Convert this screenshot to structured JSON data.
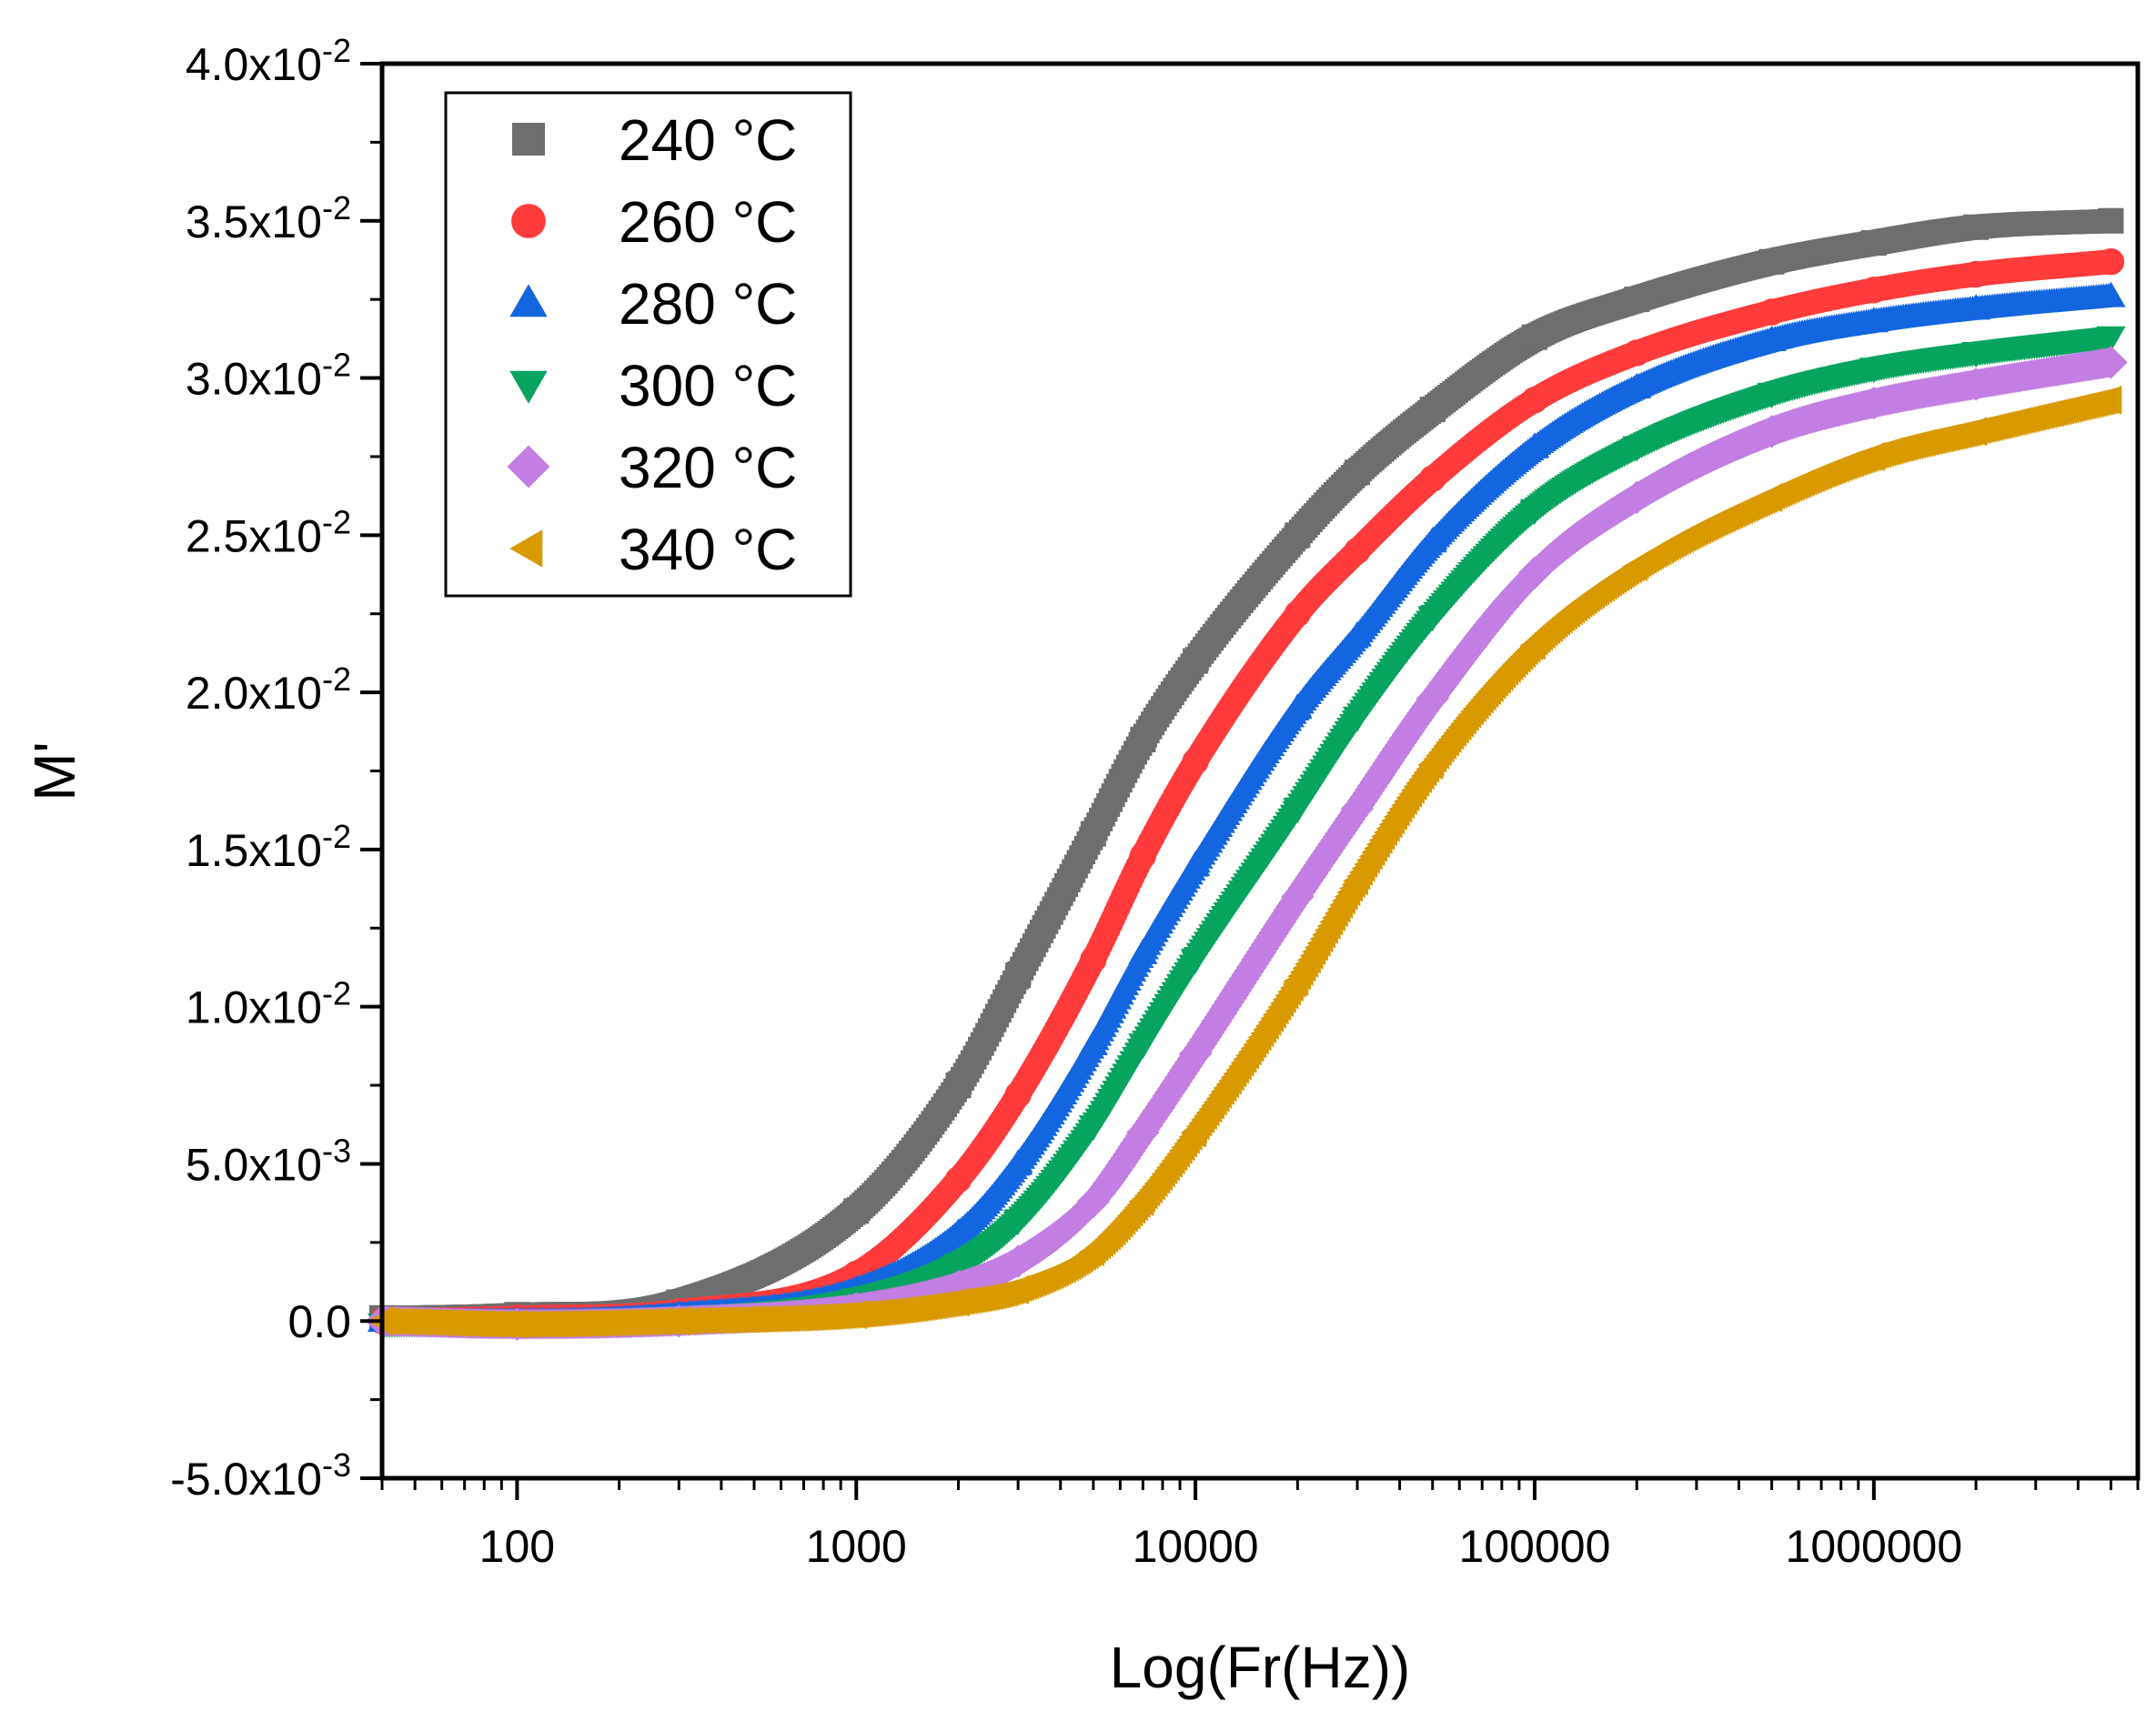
{
  "chart_data": {
    "type": "scatter",
    "title": "",
    "xlabel": "Log(Fr(Hz))",
    "ylabel": "M'",
    "xscale": "log",
    "xlim": [
      40,
      6000000
    ],
    "ylim": [
      -0.005,
      0.04
    ],
    "grid": false,
    "legend_position": "top-left",
    "x_ticks": [
      {
        "value": 100,
        "label": "100"
      },
      {
        "value": 1000,
        "label": "1000"
      },
      {
        "value": 10000,
        "label": "10000"
      },
      {
        "value": 100000,
        "label": "100000"
      },
      {
        "value": 1000000,
        "label": "1000000"
      }
    ],
    "y_ticks": [
      {
        "value": -0.005,
        "mantissa": "-5.0x10",
        "exponent": "-3"
      },
      {
        "value": 0,
        "mantissa": "0.0",
        "exponent": ""
      },
      {
        "value": 0.005,
        "mantissa": "5.0x10",
        "exponent": "-3"
      },
      {
        "value": 0.01,
        "mantissa": "1.0x10",
        "exponent": "-2"
      },
      {
        "value": 0.015,
        "mantissa": "1.5x10",
        "exponent": "-2"
      },
      {
        "value": 0.02,
        "mantissa": "2.0x10",
        "exponent": "-2"
      },
      {
        "value": 0.025,
        "mantissa": "2.5x10",
        "exponent": "-2"
      },
      {
        "value": 0.03,
        "mantissa": "3.0x10",
        "exponent": "-2"
      },
      {
        "value": 0.035,
        "mantissa": "3.5x10",
        "exponent": "-2"
      },
      {
        "value": 0.04,
        "mantissa": "4.0x10",
        "exponent": "-2"
      }
    ],
    "series": [
      {
        "name": "240 °C",
        "marker": "square",
        "color": "#6e6e6e",
        "x": [
          40,
          100,
          300,
          1000,
          2000,
          3000,
          5000,
          7000,
          10000,
          20000,
          30000,
          50000,
          100000,
          200000,
          500000,
          1000000,
          2000000,
          5000000
        ],
        "y": [
          0.0001,
          0.0002,
          0.0006,
          0.0035,
          0.0075,
          0.011,
          0.0155,
          0.0185,
          0.021,
          0.025,
          0.027,
          0.029,
          0.0313,
          0.0325,
          0.0337,
          0.0343,
          0.0348,
          0.035
        ]
      },
      {
        "name": "260 °C",
        "marker": "circle",
        "color": "#ff3b3b",
        "x": [
          40,
          100,
          300,
          1000,
          2000,
          3000,
          5000,
          7000,
          10000,
          20000,
          30000,
          50000,
          100000,
          200000,
          500000,
          1000000,
          2000000,
          5000000
        ],
        "y": [
          0.0,
          0.0001,
          0.0003,
          0.0015,
          0.0045,
          0.0072,
          0.0115,
          0.0148,
          0.0178,
          0.0225,
          0.0245,
          0.0268,
          0.0293,
          0.0308,
          0.0321,
          0.0328,
          0.0333,
          0.0337
        ]
      },
      {
        "name": "280 °C",
        "marker": "triangle-up",
        "color": "#1466e0",
        "x": [
          40,
          100,
          300,
          1000,
          2000,
          3000,
          5000,
          7000,
          10000,
          20000,
          30000,
          50000,
          100000,
          200000,
          500000,
          1000000,
          2000000,
          5000000
        ],
        "y": [
          0.0,
          0.0,
          0.0002,
          0.001,
          0.0028,
          0.005,
          0.0088,
          0.0117,
          0.0145,
          0.0195,
          0.0218,
          0.0248,
          0.0278,
          0.0297,
          0.0312,
          0.0318,
          0.0322,
          0.0326
        ]
      },
      {
        "name": "300 °C",
        "marker": "triangle-down",
        "color": "#07a45f",
        "x": [
          40,
          100,
          300,
          1000,
          2000,
          3000,
          5000,
          7000,
          10000,
          20000,
          30000,
          50000,
          100000,
          200000,
          500000,
          1000000,
          2000000,
          5000000
        ],
        "y": [
          -0.0001,
          -0.0001,
          0.0001,
          0.0007,
          0.0018,
          0.0032,
          0.0062,
          0.0088,
          0.0115,
          0.0163,
          0.0192,
          0.0224,
          0.0258,
          0.0278,
          0.0295,
          0.0303,
          0.0308,
          0.0313
        ]
      },
      {
        "name": "320 °C",
        "marker": "diamond",
        "color": "#c27ee2",
        "x": [
          40,
          100,
          300,
          1000,
          2000,
          3000,
          5000,
          7000,
          10000,
          20000,
          30000,
          50000,
          100000,
          200000,
          500000,
          1000000,
          2000000,
          5000000
        ],
        "y": [
          0.0,
          -0.0001,
          0.0,
          0.0004,
          0.0011,
          0.0019,
          0.0038,
          0.006,
          0.0085,
          0.0135,
          0.0163,
          0.0198,
          0.0238,
          0.0262,
          0.0283,
          0.0292,
          0.0298,
          0.0305
        ]
      },
      {
        "name": "340 °C",
        "marker": "triangle-left",
        "color": "#d89a00",
        "x": [
          40,
          100,
          300,
          1000,
          2000,
          3000,
          5000,
          7000,
          10000,
          20000,
          30000,
          50000,
          100000,
          200000,
          500000,
          1000000,
          2000000,
          5000000
        ],
        "y": [
          0.0,
          -0.0001,
          0.0,
          0.0002,
          0.0006,
          0.001,
          0.0022,
          0.0038,
          0.006,
          0.0108,
          0.014,
          0.0177,
          0.0215,
          0.024,
          0.0262,
          0.0275,
          0.0283,
          0.0293
        ]
      }
    ]
  }
}
